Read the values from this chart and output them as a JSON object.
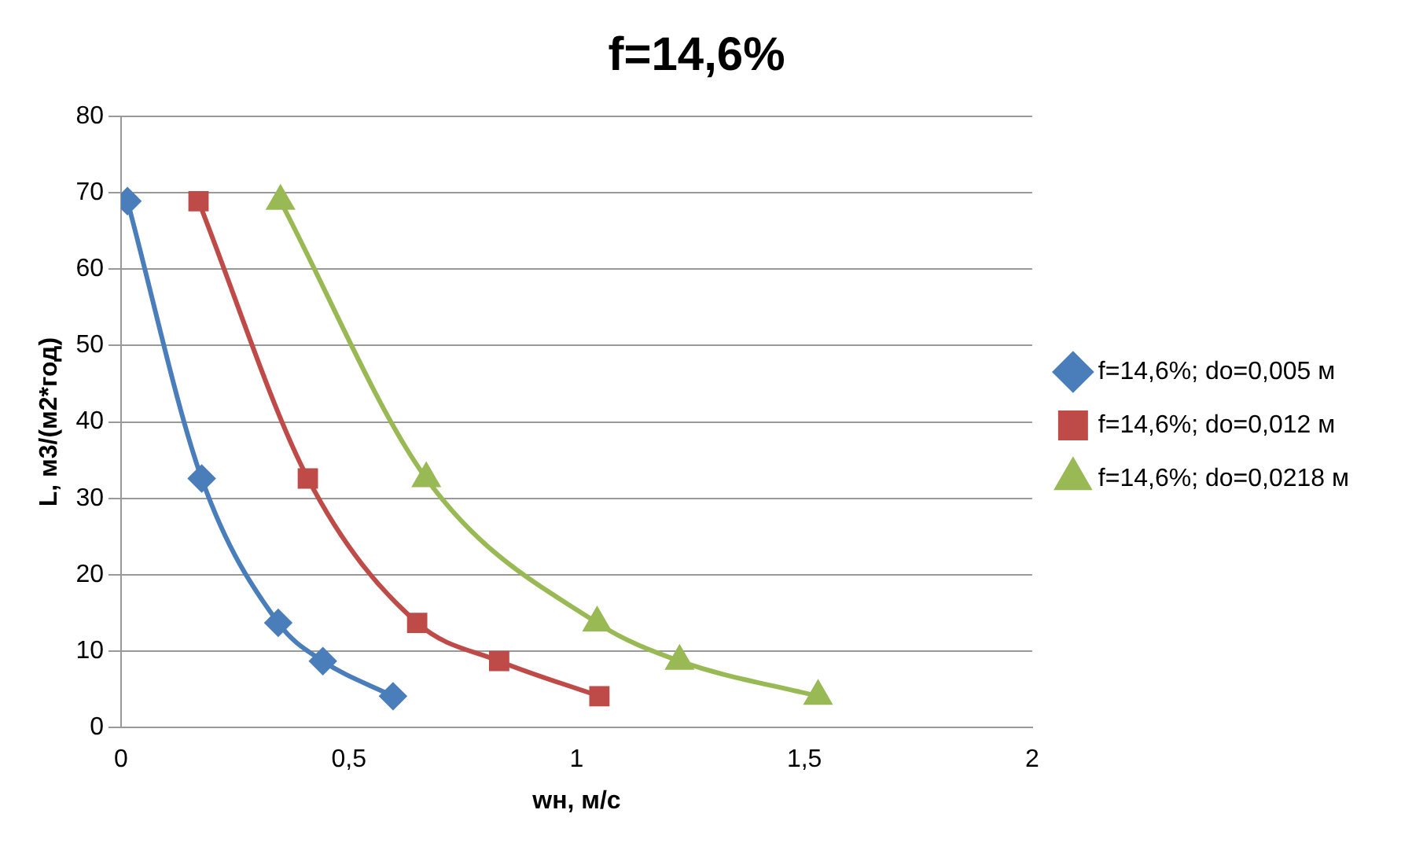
{
  "chart_data": {
    "type": "line",
    "title": "f=14,6%",
    "xlabel": "wн, м/с",
    "ylabel": "L, м3/(м2*год)",
    "xlim": [
      0,
      2
    ],
    "xticks": [
      0,
      {
        "value": 0.5,
        "label": "0,5"
      },
      1,
      {
        "value": 1.5,
        "label": "1,5"
      },
      2
    ],
    "ylim": [
      0,
      80
    ],
    "yticks": [
      0,
      10,
      20,
      30,
      40,
      50,
      60,
      70,
      80
    ],
    "grid": "y",
    "legend": "right",
    "series": [
      {
        "name": "f=14,6%; do=0,005 м",
        "color": "#4a7ebb",
        "marker": "diamond",
        "x": [
          0.014,
          0.177,
          0.345,
          0.443,
          0.597
        ],
        "values": [
          68.9,
          32.6,
          13.7,
          8.7,
          4.1
        ]
      },
      {
        "name": "f=14,6%; do=0,012 м",
        "color": "#be4b48",
        "marker": "square",
        "x": [
          0.17,
          0.41,
          0.65,
          0.83,
          1.05
        ],
        "values": [
          68.9,
          32.6,
          13.7,
          8.7,
          4.1
        ]
      },
      {
        "name": "f=14,6%; do=0,0218 м",
        "color": "#98b954",
        "marker": "triangle",
        "x": [
          0.35,
          0.67,
          1.045,
          1.226,
          1.53
        ],
        "values": [
          68.9,
          32.6,
          13.7,
          8.7,
          4.1
        ]
      }
    ]
  }
}
